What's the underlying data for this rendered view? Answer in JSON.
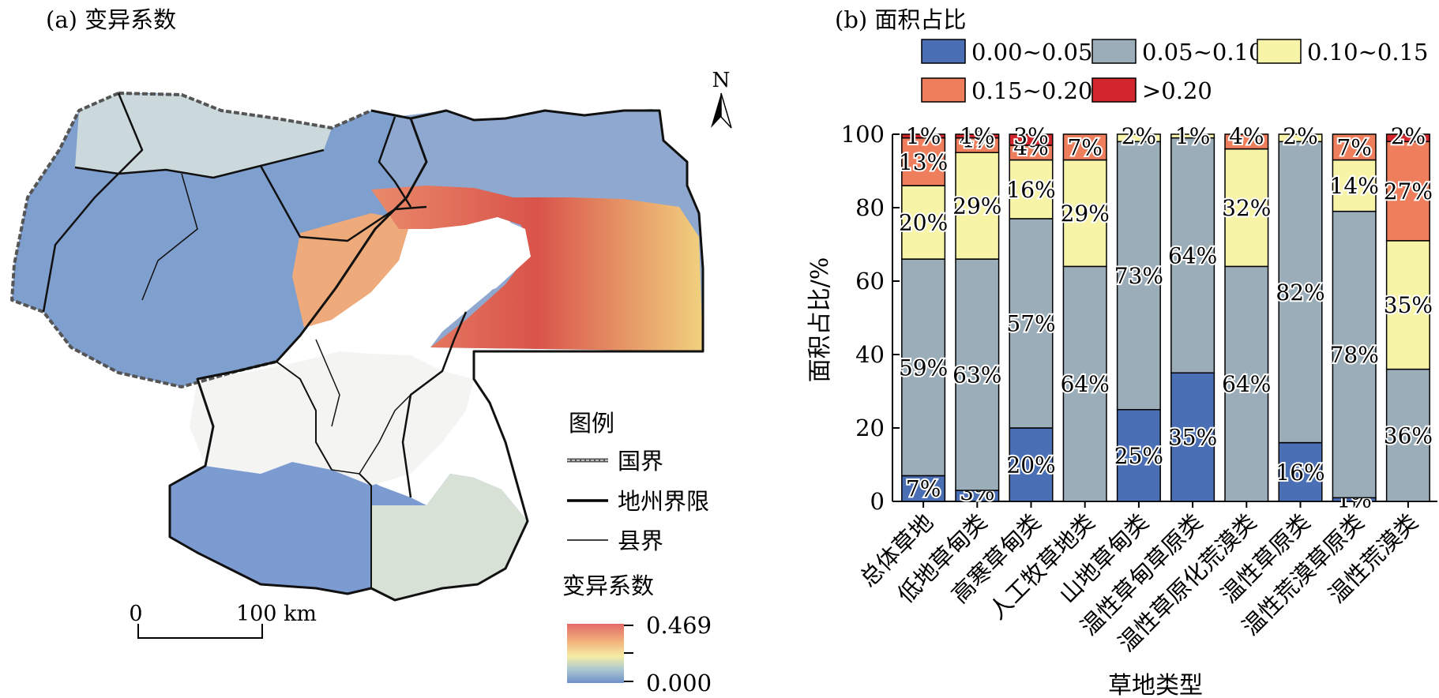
{
  "map_panel": {
    "title": "(a) 变异系数",
    "north_label": "N",
    "scale_bar": {
      "start_label": "0",
      "end_label": "100 km"
    },
    "legend": {
      "title": "图例",
      "items": [
        {
          "label": "国界",
          "style": "dashed-double"
        },
        {
          "label": "地州界限",
          "style": "thick"
        },
        {
          "label": "县界",
          "style": "thin"
        }
      ],
      "colorbar_title": "变异系数",
      "colorbar_max": "0.469",
      "colorbar_min": "0.000",
      "colorbar_colors": [
        "#e36b6b",
        "#f2b27a",
        "#f5eda6",
        "#a8c6d0",
        "#6f8fc9"
      ]
    }
  },
  "chart_panel": {
    "title": "(b) 面积占比"
  },
  "chart_data": {
    "type": "bar",
    "stacked": true,
    "xlabel": "草地类型",
    "ylabel": "面积占比/%",
    "ylim": [
      0,
      100
    ],
    "yticks": [
      0,
      20,
      40,
      60,
      80,
      100
    ],
    "legend_position": "top",
    "categories": [
      "总体草地",
      "低地草甸类",
      "高寒草甸类",
      "人工牧草地类",
      "山地草甸类",
      "温性草甸草原类",
      "温性草原化荒漠类",
      "温性草原类",
      "温性荒漠草原类",
      "温性荒漠类"
    ],
    "series": [
      {
        "name": "0.00~0.05",
        "color": "#4a6fb5",
        "values": [
          7,
          3,
          20,
          0,
          25,
          35,
          0,
          16,
          1,
          0
        ],
        "labels": [
          "7%",
          "3%",
          "20%",
          "",
          "25%",
          "35%",
          "",
          "16%",
          "1%",
          ""
        ]
      },
      {
        "name": "0.05~0.10",
        "color": "#9aadb8",
        "values": [
          59,
          63,
          57,
          64,
          73,
          64,
          64,
          82,
          78,
          36
        ],
        "labels": [
          "59%",
          "63%",
          "57%",
          "64%",
          "73%",
          "64%",
          "64%",
          "82%",
          "78%",
          "36%"
        ]
      },
      {
        "name": "0.10~0.15",
        "color": "#f7f4a8",
        "values": [
          20,
          29,
          16,
          29,
          2,
          1,
          32,
          2,
          14,
          35
        ],
        "labels": [
          "20%",
          "29%",
          "16%",
          "29%",
          "2%",
          "1%",
          "32%",
          "2%",
          "14%",
          "35%"
        ]
      },
      {
        "name": "0.15~0.20",
        "color": "#ee7e5c",
        "values": [
          13,
          4,
          4,
          7,
          0,
          0,
          4,
          0,
          7,
          27
        ],
        "labels": [
          "13%",
          "4%",
          "4%",
          "7%",
          "",
          "",
          "4%",
          "",
          "7%",
          "27%"
        ]
      },
      {
        "name": ">0.20",
        "color": "#d1262b",
        "values": [
          1,
          1,
          3,
          0,
          0,
          0,
          0,
          0,
          0,
          2
        ],
        "labels": [
          "1%",
          "1%",
          "3%",
          "",
          "",
          "",
          "",
          "",
          "",
          "2%"
        ]
      }
    ]
  }
}
